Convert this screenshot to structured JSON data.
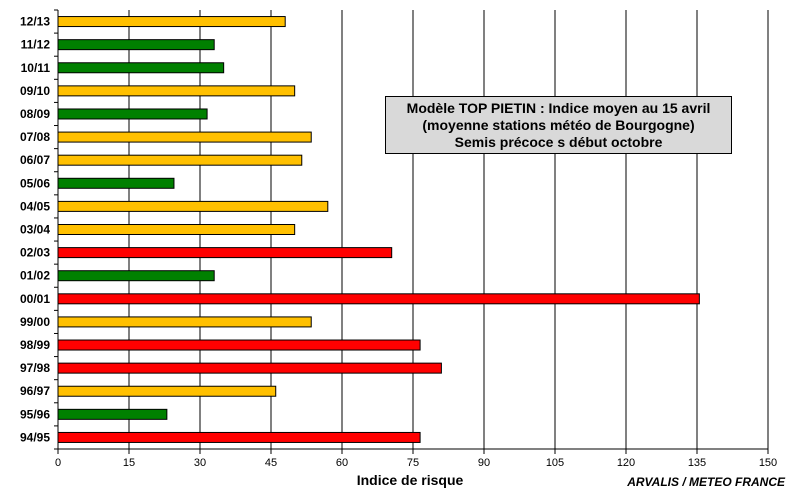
{
  "chart_data": {
    "type": "bar",
    "orientation": "horizontal",
    "categories": [
      "12/13",
      "11/12",
      "10/11",
      "09/10",
      "08/09",
      "07/08",
      "06/07",
      "05/06",
      "04/05",
      "03/04",
      "02/03",
      "01/02",
      "00/01",
      "99/00",
      "98/99",
      "97/98",
      "96/97",
      "95/96",
      "94/95"
    ],
    "values": [
      48,
      33,
      35,
      50,
      31.5,
      53.5,
      51.5,
      24.5,
      57,
      50,
      70.5,
      33,
      135.5,
      53.5,
      76.5,
      81,
      46,
      23,
      76.5
    ],
    "bar_colors": [
      "#ffc000",
      "#008000",
      "#008000",
      "#ffc000",
      "#008000",
      "#ffc000",
      "#ffc000",
      "#008000",
      "#ffc000",
      "#ffc000",
      "#ff0000",
      "#008000",
      "#ff0000",
      "#ffc000",
      "#ff0000",
      "#ff0000",
      "#ffc000",
      "#008000",
      "#ff0000"
    ],
    "xlabel": "Indice de risque",
    "xlim": [
      0,
      150
    ],
    "xticks": [
      "0",
      "15",
      "30",
      "45",
      "60",
      "75",
      "90",
      "105",
      "120",
      "135",
      "150"
    ],
    "grid": "vertical",
    "annotation": [
      "Modèle TOP PIETIN : Indice moyen au 15 avril",
      "(moyenne stations météo de Bourgogne)",
      "Semis précoce s début octobre"
    ],
    "credit": "ARVALIS / METEO FRANCE"
  }
}
